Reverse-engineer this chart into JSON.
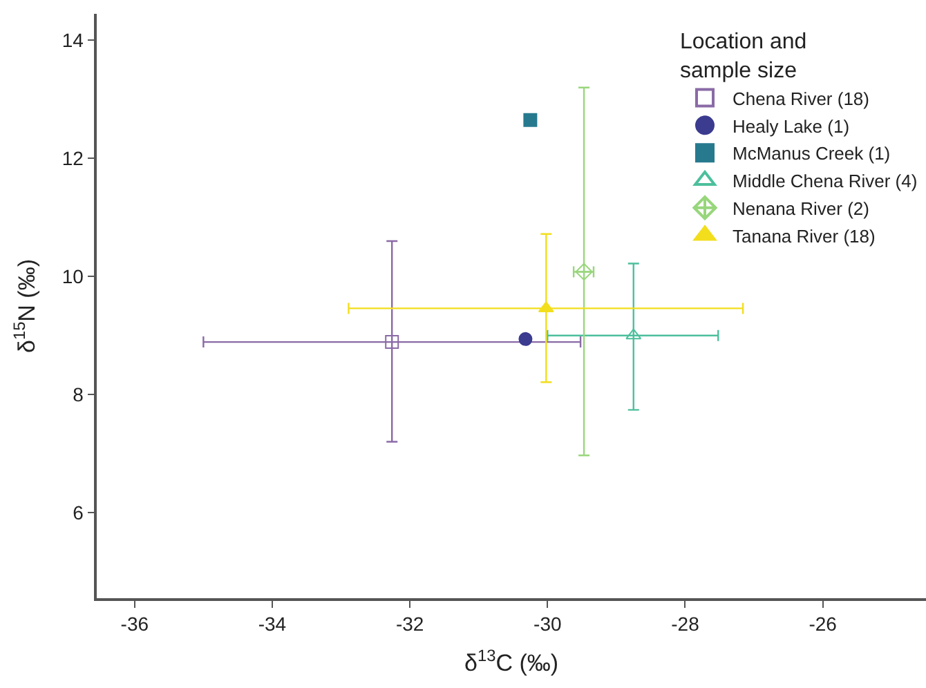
{
  "chart_data": {
    "type": "scatter",
    "xlabel": "δ$^{13}$C (‰)",
    "ylabel": "δ$^{15}$N (‰)",
    "legend_title": "Location and\nsample size",
    "xlim": [
      -36.55,
      -24.5
    ],
    "xticks": [
      -36,
      -34,
      -32,
      -30,
      -28,
      -26
    ],
    "ylim": [
      4.55,
      14.45
    ],
    "yticks": [
      6,
      8,
      10,
      12,
      14
    ],
    "legend": "top right",
    "series": [
      {
        "name": "Chena River (18)",
        "color": "#8a6aa6",
        "marker": "square-open",
        "x": [
          -32.26
        ],
        "values": [
          8.89
        ],
        "errors": [
          [
            7.2,
            10.6
          ]
        ],
        "xerrors": [
          [
            -35.0,
            -29.52
          ]
        ]
      },
      {
        "name": "Healy Lake (1)",
        "color": "#3b3b8f",
        "marker": "circle",
        "x": [
          -30.32
        ],
        "values": [
          8.94
        ]
      },
      {
        "name": "McManus Creek (1)",
        "color": "#277a8e",
        "marker": "square",
        "x": [
          -30.25
        ],
        "values": [
          12.65
        ]
      },
      {
        "name": "Middle Chena River (4)",
        "color": "#4cbf9c",
        "marker": "triangle-up-open",
        "x": [
          -28.75
        ],
        "values": [
          9.0
        ],
        "errors": [
          [
            7.74,
            10.22
          ]
        ],
        "xerrors": [
          [
            -30.0,
            -27.52
          ]
        ]
      },
      {
        "name": "Nenana River (2)",
        "color": "#98d67c",
        "marker": "diamond-cross-open",
        "x": [
          -29.47
        ],
        "values": [
          10.08
        ],
        "errors": [
          [
            6.97,
            13.2
          ]
        ],
        "xerrors": [
          [
            -29.62,
            -29.33
          ]
        ]
      },
      {
        "name": "Tanana River (18)",
        "color": "#f2de1c",
        "marker": "triangle-up",
        "x": [
          -30.02
        ],
        "values": [
          9.46
        ],
        "errors": [
          [
            8.21,
            10.72
          ]
        ],
        "xerrors": [
          [
            -32.89,
            -27.16
          ]
        ]
      }
    ]
  }
}
